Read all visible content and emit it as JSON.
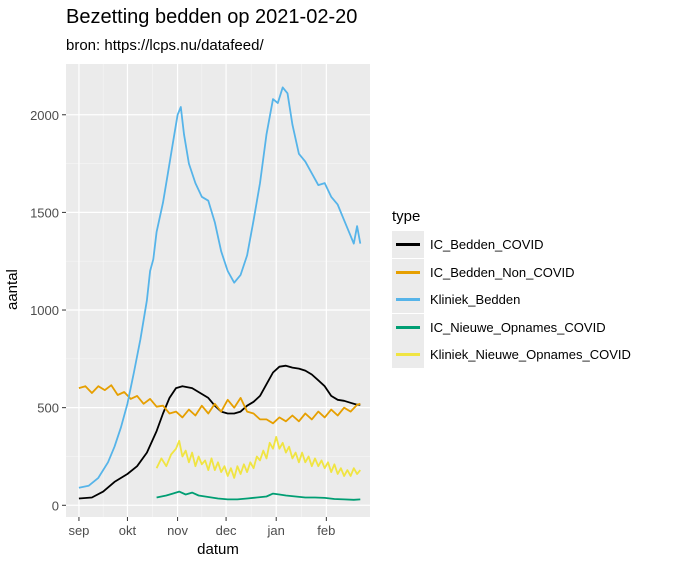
{
  "title": "Bezetting bedden op 2021-02-20",
  "subtitle": "bron: https://lcps.nu/datafeed/",
  "chart_data": {
    "type": "line",
    "title": "Bezetting bedden op 2021-02-20",
    "subtitle": "bron: https://lcps.nu/datafeed/",
    "xlabel": "datum",
    "ylabel": "aantal",
    "ylim": [
      -60,
      2260
    ],
    "yticks": [
      0,
      500,
      1000,
      1500,
      2000
    ],
    "xticks": [
      "sep",
      "okt",
      "nov",
      "dec",
      "jan",
      "feb"
    ],
    "xtick_days": [
      0,
      30,
      61,
      91,
      122,
      153
    ],
    "xlim_days": [
      -8,
      180
    ],
    "x_start_date": "2020-09-01",
    "grid": true,
    "legend_title": "type",
    "legend_position": "right",
    "series": [
      {
        "name": "IC_Bedden_COVID",
        "color": "#000000",
        "points": [
          [
            0,
            35
          ],
          [
            8,
            40
          ],
          [
            15,
            70
          ],
          [
            22,
            120
          ],
          [
            30,
            160
          ],
          [
            36,
            200
          ],
          [
            42,
            270
          ],
          [
            48,
            380
          ],
          [
            52,
            470
          ],
          [
            56,
            550
          ],
          [
            60,
            600
          ],
          [
            64,
            610
          ],
          [
            70,
            600
          ],
          [
            75,
            575
          ],
          [
            80,
            550
          ],
          [
            84,
            510
          ],
          [
            88,
            480
          ],
          [
            92,
            470
          ],
          [
            96,
            470
          ],
          [
            100,
            480
          ],
          [
            104,
            510
          ],
          [
            108,
            530
          ],
          [
            112,
            560
          ],
          [
            116,
            620
          ],
          [
            120,
            680
          ],
          [
            124,
            710
          ],
          [
            128,
            715
          ],
          [
            132,
            705
          ],
          [
            136,
            700
          ],
          [
            140,
            690
          ],
          [
            144,
            670
          ],
          [
            148,
            640
          ],
          [
            152,
            610
          ],
          [
            156,
            560
          ],
          [
            160,
            540
          ],
          [
            164,
            535
          ],
          [
            168,
            525
          ],
          [
            172,
            515
          ],
          [
            174,
            515
          ]
        ]
      },
      {
        "name": "IC_Bedden_Non_COVID",
        "color": "#e69f00",
        "points": [
          [
            0,
            600
          ],
          [
            4,
            610
          ],
          [
            8,
            575
          ],
          [
            12,
            610
          ],
          [
            16,
            590
          ],
          [
            20,
            615
          ],
          [
            24,
            565
          ],
          [
            28,
            580
          ],
          [
            32,
            545
          ],
          [
            36,
            560
          ],
          [
            40,
            520
          ],
          [
            44,
            545
          ],
          [
            48,
            505
          ],
          [
            52,
            510
          ],
          [
            56,
            470
          ],
          [
            60,
            480
          ],
          [
            64,
            450
          ],
          [
            68,
            490
          ],
          [
            72,
            460
          ],
          [
            76,
            510
          ],
          [
            80,
            470
          ],
          [
            84,
            520
          ],
          [
            88,
            480
          ],
          [
            92,
            540
          ],
          [
            96,
            500
          ],
          [
            100,
            550
          ],
          [
            104,
            480
          ],
          [
            108,
            470
          ],
          [
            112,
            440
          ],
          [
            116,
            440
          ],
          [
            120,
            420
          ],
          [
            124,
            450
          ],
          [
            128,
            430
          ],
          [
            132,
            460
          ],
          [
            136,
            430
          ],
          [
            140,
            470
          ],
          [
            144,
            440
          ],
          [
            148,
            480
          ],
          [
            152,
            450
          ],
          [
            156,
            490
          ],
          [
            160,
            460
          ],
          [
            164,
            500
          ],
          [
            168,
            480
          ],
          [
            172,
            515
          ],
          [
            174,
            520
          ]
        ]
      },
      {
        "name": "Kliniek_Bedden",
        "color": "#56b4e9",
        "points": [
          [
            0,
            90
          ],
          [
            6,
            100
          ],
          [
            12,
            140
          ],
          [
            18,
            220
          ],
          [
            22,
            300
          ],
          [
            26,
            400
          ],
          [
            30,
            520
          ],
          [
            34,
            680
          ],
          [
            38,
            850
          ],
          [
            42,
            1050
          ],
          [
            44,
            1200
          ],
          [
            46,
            1260
          ],
          [
            48,
            1400
          ],
          [
            52,
            1550
          ],
          [
            55,
            1700
          ],
          [
            58,
            1850
          ],
          [
            61,
            2000
          ],
          [
            63,
            2040
          ],
          [
            65,
            1900
          ],
          [
            68,
            1750
          ],
          [
            72,
            1650
          ],
          [
            76,
            1580
          ],
          [
            80,
            1560
          ],
          [
            84,
            1450
          ],
          [
            88,
            1300
          ],
          [
            92,
            1200
          ],
          [
            96,
            1140
          ],
          [
            100,
            1180
          ],
          [
            104,
            1280
          ],
          [
            108,
            1460
          ],
          [
            112,
            1650
          ],
          [
            116,
            1900
          ],
          [
            120,
            2080
          ],
          [
            123,
            2060
          ],
          [
            126,
            2140
          ],
          [
            129,
            2110
          ],
          [
            132,
            1950
          ],
          [
            136,
            1800
          ],
          [
            140,
            1760
          ],
          [
            144,
            1700
          ],
          [
            148,
            1640
          ],
          [
            152,
            1650
          ],
          [
            156,
            1580
          ],
          [
            160,
            1540
          ],
          [
            164,
            1460
          ],
          [
            168,
            1380
          ],
          [
            170,
            1340
          ],
          [
            172,
            1430
          ],
          [
            174,
            1340
          ]
        ]
      },
      {
        "name": "IC_Nieuwe_Opnames_COVID",
        "color": "#009e73",
        "points": [
          [
            48,
            40
          ],
          [
            54,
            50
          ],
          [
            58,
            60
          ],
          [
            62,
            70
          ],
          [
            66,
            55
          ],
          [
            70,
            65
          ],
          [
            74,
            50
          ],
          [
            78,
            45
          ],
          [
            82,
            40
          ],
          [
            86,
            35
          ],
          [
            92,
            30
          ],
          [
            98,
            30
          ],
          [
            104,
            35
          ],
          [
            110,
            40
          ],
          [
            116,
            45
          ],
          [
            120,
            60
          ],
          [
            124,
            55
          ],
          [
            128,
            50
          ],
          [
            134,
            45
          ],
          [
            140,
            40
          ],
          [
            146,
            40
          ],
          [
            152,
            38
          ],
          [
            158,
            32
          ],
          [
            164,
            30
          ],
          [
            170,
            28
          ],
          [
            174,
            30
          ]
        ]
      },
      {
        "name": "Kliniek_Nieuwe_Opnames_COVID",
        "color": "#f0e442",
        "points": [
          [
            48,
            190
          ],
          [
            51,
            240
          ],
          [
            54,
            200
          ],
          [
            57,
            260
          ],
          [
            60,
            290
          ],
          [
            62,
            330
          ],
          [
            64,
            250
          ],
          [
            66,
            280
          ],
          [
            68,
            220
          ],
          [
            70,
            270
          ],
          [
            72,
            200
          ],
          [
            74,
            250
          ],
          [
            76,
            210
          ],
          [
            78,
            230
          ],
          [
            80,
            180
          ],
          [
            82,
            240
          ],
          [
            84,
            180
          ],
          [
            86,
            220
          ],
          [
            88,
            170
          ],
          [
            90,
            200
          ],
          [
            92,
            150
          ],
          [
            94,
            190
          ],
          [
            96,
            140
          ],
          [
            98,
            200
          ],
          [
            100,
            160
          ],
          [
            102,
            210
          ],
          [
            104,
            170
          ],
          [
            106,
            220
          ],
          [
            108,
            190
          ],
          [
            110,
            250
          ],
          [
            112,
            230
          ],
          [
            114,
            280
          ],
          [
            116,
            240
          ],
          [
            118,
            320
          ],
          [
            120,
            290
          ],
          [
            122,
            350
          ],
          [
            124,
            290
          ],
          [
            126,
            320
          ],
          [
            128,
            270
          ],
          [
            130,
            300
          ],
          [
            132,
            240
          ],
          [
            134,
            270
          ],
          [
            136,
            220
          ],
          [
            138,
            270
          ],
          [
            140,
            220
          ],
          [
            142,
            250
          ],
          [
            144,
            200
          ],
          [
            146,
            240
          ],
          [
            148,
            200
          ],
          [
            150,
            230
          ],
          [
            152,
            190
          ],
          [
            154,
            220
          ],
          [
            156,
            170
          ],
          [
            158,
            210
          ],
          [
            160,
            160
          ],
          [
            162,
            190
          ],
          [
            164,
            150
          ],
          [
            166,
            180
          ],
          [
            168,
            150
          ],
          [
            170,
            190
          ],
          [
            172,
            160
          ],
          [
            174,
            180
          ]
        ]
      }
    ]
  }
}
